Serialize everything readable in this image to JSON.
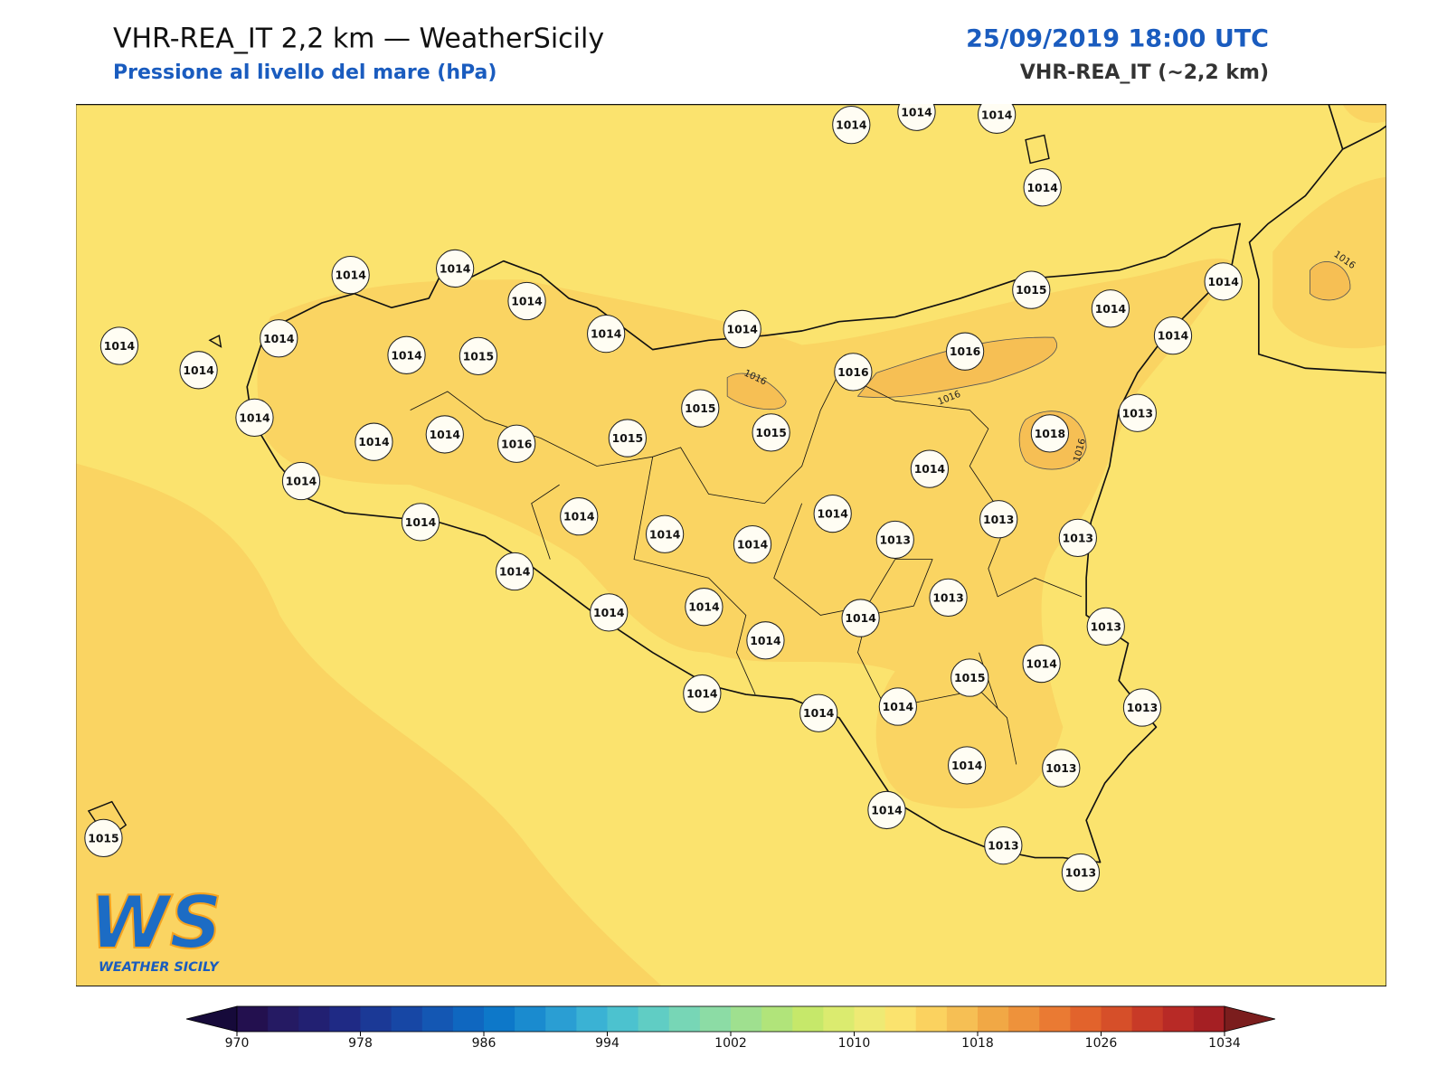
{
  "header": {
    "title": "VHR-REA_IT 2,2 km — WeatherSicily",
    "subtitle": "Pressione al livello del mare (hPa)",
    "date": "25/09/2019 18:00 UTC",
    "model": "VHR-REA_IT (~2,2 km)"
  },
  "stations": [
    1014,
    1014,
    1014,
    1014,
    1014,
    1014,
    1014,
    1014,
    1014,
    1015,
    1014,
    1014,
    1014,
    1014,
    1014,
    1014,
    1014,
    1015,
    1016,
    1016,
    1014,
    1015,
    1013,
    1014,
    1014,
    1016,
    1015,
    1015,
    1018,
    1014,
    1014,
    1014,
    1014,
    1014,
    1013,
    1014,
    1014,
    1013,
    1013,
    1014,
    1013,
    1014,
    1014,
    1014,
    1013,
    1014,
    1014,
    1015,
    1014,
    1014,
    1014,
    1013,
    1014,
    1013,
    1014,
    1013,
    1013,
    1015
  ],
  "contour_labels": [
    1016,
    1016,
    1016,
    1016
  ],
  "logo": {
    "mark": "WS",
    "name": "WEATHER SICILY"
  },
  "colorbar": {
    "min": 970,
    "max": 1034,
    "ticks": [
      970,
      978,
      986,
      994,
      1002,
      1010,
      1018,
      1026,
      1034
    ],
    "colors": [
      "#23104f",
      "#251a63",
      "#222072",
      "#1f2a85",
      "#1b3996",
      "#1747a5",
      "#1457b3",
      "#0f67c0",
      "#0d78c9",
      "#1a8bcf",
      "#2a9ed3",
      "#3ab2d4",
      "#4cc2cf",
      "#60cdc4",
      "#77d6b6",
      "#8cdca5",
      "#9fe08f",
      "#b1e47a",
      "#c6e86a",
      "#dbeb6f",
      "#eeea74",
      "#fbe36e",
      "#fbd25f",
      "#f6bf54",
      "#f1a845",
      "#ee923b",
      "#ea7a33",
      "#e2632c",
      "#d64f29",
      "#c83a27",
      "#b82a26",
      "#a51f23"
    ],
    "under_color": "#160a3a",
    "over_color": "#7b1d1d"
  }
}
